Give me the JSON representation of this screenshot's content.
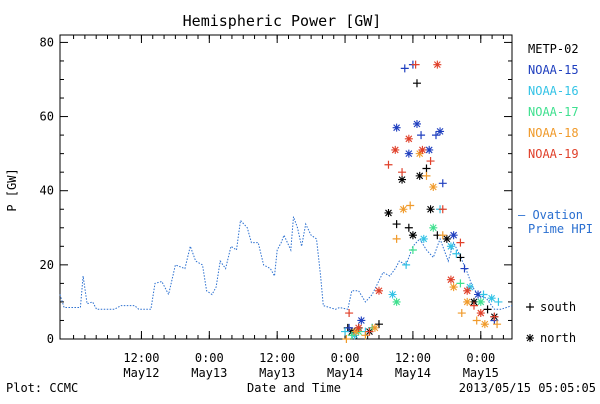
{
  "chart_data": {
    "type": "scatter",
    "title": "Hemispheric Power [GW]",
    "ylabel": "P [GW]",
    "xlabel": "Date and Time",
    "ylim": [
      0,
      82
    ],
    "xlim": [
      -0.1,
      3.23
    ],
    "y_ticks": [
      0,
      20,
      40,
      60,
      80
    ],
    "x_ticks": [
      {
        "x": 0.5,
        "time": "12:00",
        "date": "May12"
      },
      {
        "x": 1.0,
        "time": "0:00",
        "date": "May13"
      },
      {
        "x": 1.5,
        "time": "12:00",
        "date": "May13"
      },
      {
        "x": 2.0,
        "time": "0:00",
        "date": "May14"
      },
      {
        "x": 2.5,
        "time": "12:00",
        "date": "May14"
      },
      {
        "x": 3.0,
        "time": "0:00",
        "date": "May15"
      }
    ],
    "x_unit": "days from May11 0:00",
    "legend_placement": "right",
    "satellites": [
      {
        "name": "METP-02",
        "color": "#000000"
      },
      {
        "name": "NOAA-15",
        "color": "#1f3fbf"
      },
      {
        "name": "NOAA-16",
        "color": "#33c3e6"
      },
      {
        "name": "NOAA-17",
        "color": "#3fe08f"
      },
      {
        "name": "NOAA-18",
        "color": "#f09a2a"
      },
      {
        "name": "NOAA-19",
        "color": "#e0402a"
      }
    ],
    "ovation": {
      "label_line1": "– Ovation",
      "label_line2": "Prime HPI",
      "color": "#2a6fd0",
      "points": [
        [
          -0.1,
          12
        ],
        [
          -0.07,
          8.5
        ],
        [
          0.05,
          8.5
        ],
        [
          0.07,
          17
        ],
        [
          0.1,
          9.5
        ],
        [
          0.14,
          10
        ],
        [
          0.17,
          8
        ],
        [
          0.3,
          8
        ],
        [
          0.35,
          9
        ],
        [
          0.45,
          9
        ],
        [
          0.48,
          8
        ],
        [
          0.57,
          8
        ],
        [
          0.6,
          15
        ],
        [
          0.65,
          15.5
        ],
        [
          0.7,
          12
        ],
        [
          0.75,
          20
        ],
        [
          0.82,
          19
        ],
        [
          0.86,
          25
        ],
        [
          0.9,
          21
        ],
        [
          0.95,
          20
        ],
        [
          0.98,
          13
        ],
        [
          1.02,
          12
        ],
        [
          1.05,
          14
        ],
        [
          1.08,
          21
        ],
        [
          1.12,
          19
        ],
        [
          1.16,
          25
        ],
        [
          1.2,
          24
        ],
        [
          1.23,
          32
        ],
        [
          1.28,
          30
        ],
        [
          1.31,
          26
        ],
        [
          1.36,
          26
        ],
        [
          1.4,
          20
        ],
        [
          1.45,
          19
        ],
        [
          1.48,
          17
        ],
        [
          1.5,
          24
        ],
        [
          1.53,
          26
        ],
        [
          1.55,
          28
        ],
        [
          1.6,
          24
        ],
        [
          1.62,
          33
        ],
        [
          1.65,
          30
        ],
        [
          1.68,
          25
        ],
        [
          1.71,
          31
        ],
        [
          1.75,
          28
        ],
        [
          1.79,
          27
        ],
        [
          1.82,
          17
        ],
        [
          1.84,
          9
        ],
        [
          1.93,
          8
        ],
        [
          1.96,
          8.5
        ],
        [
          2.02,
          8
        ],
        [
          2.05,
          13
        ],
        [
          2.1,
          13
        ],
        [
          2.15,
          10
        ],
        [
          2.2,
          12
        ],
        [
          2.28,
          18
        ],
        [
          2.33,
          17
        ],
        [
          2.37,
          19
        ],
        [
          2.4,
          21
        ],
        [
          2.45,
          20
        ],
        [
          2.5,
          25
        ],
        [
          2.55,
          27
        ],
        [
          2.6,
          24
        ],
        [
          2.65,
          22
        ],
        [
          2.7,
          27
        ],
        [
          2.72,
          25
        ],
        [
          2.76,
          21
        ],
        [
          2.8,
          26
        ],
        [
          2.84,
          23
        ],
        [
          2.9,
          18
        ],
        [
          2.94,
          14
        ],
        [
          2.98,
          12
        ],
        [
          3.04,
          11
        ],
        [
          3.1,
          8
        ],
        [
          3.15,
          8
        ],
        [
          3.23,
          9
        ]
      ]
    },
    "series": [
      {
        "name": "METP-02",
        "marker": "mixed",
        "points": [
          [
            2.02,
            3
          ],
          [
            2.05,
            2
          ],
          [
            2.1,
            3
          ],
          [
            2.18,
            2
          ],
          [
            2.25,
            4
          ],
          [
            2.32,
            34
          ],
          [
            2.38,
            31
          ],
          [
            2.42,
            43
          ],
          [
            2.47,
            30
          ],
          [
            2.5,
            28
          ],
          [
            2.53,
            69
          ],
          [
            2.55,
            44
          ],
          [
            2.6,
            46
          ],
          [
            2.63,
            35
          ],
          [
            2.68,
            28
          ],
          [
            2.75,
            27
          ],
          [
            2.85,
            22
          ],
          [
            2.95,
            10
          ],
          [
            3.05,
            8
          ],
          [
            3.1,
            6
          ]
        ]
      },
      {
        "name": "NOAA-15",
        "marker": "mixed",
        "points": [
          [
            2.03,
            3
          ],
          [
            2.12,
            5
          ],
          [
            2.2,
            3
          ],
          [
            2.38,
            57
          ],
          [
            2.44,
            73
          ],
          [
            2.47,
            50
          ],
          [
            2.5,
            74
          ],
          [
            2.53,
            58
          ],
          [
            2.56,
            55
          ],
          [
            2.62,
            51
          ],
          [
            2.67,
            55
          ],
          [
            2.7,
            56
          ],
          [
            2.72,
            42
          ],
          [
            2.8,
            28
          ],
          [
            2.88,
            19
          ],
          [
            2.98,
            12
          ],
          [
            3.1,
            5
          ]
        ]
      },
      {
        "name": "NOAA-16",
        "marker": "mixed",
        "points": [
          [
            2.0,
            2
          ],
          [
            2.07,
            1
          ],
          [
            2.15,
            2
          ],
          [
            2.35,
            12
          ],
          [
            2.45,
            20
          ],
          [
            2.58,
            27
          ],
          [
            2.7,
            35
          ],
          [
            2.78,
            25
          ],
          [
            2.82,
            23
          ],
          [
            2.92,
            14
          ],
          [
            3.02,
            12
          ],
          [
            3.08,
            11
          ],
          [
            3.13,
            10
          ]
        ]
      },
      {
        "name": "NOAA-17",
        "marker": "mixed",
        "points": [
          [
            2.05,
            1
          ],
          [
            2.1,
            2
          ],
          [
            2.2,
            3
          ],
          [
            2.38,
            10
          ],
          [
            2.5,
            24
          ],
          [
            2.65,
            30
          ],
          [
            2.85,
            15
          ],
          [
            3.0,
            10
          ]
        ]
      },
      {
        "name": "NOAA-18",
        "marker": "mixed",
        "points": [
          [
            2.01,
            0
          ],
          [
            2.08,
            2
          ],
          [
            2.15,
            1
          ],
          [
            2.22,
            3
          ],
          [
            2.38,
            27
          ],
          [
            2.43,
            35
          ],
          [
            2.48,
            36
          ],
          [
            2.55,
            50
          ],
          [
            2.6,
            44
          ],
          [
            2.65,
            41
          ],
          [
            2.72,
            28
          ],
          [
            2.8,
            14
          ],
          [
            2.86,
            7
          ],
          [
            2.9,
            10
          ],
          [
            2.97,
            5
          ],
          [
            3.03,
            4
          ],
          [
            3.12,
            4
          ]
        ]
      },
      {
        "name": "NOAA-19",
        "marker": "mixed",
        "points": [
          [
            2.03,
            7
          ],
          [
            2.1,
            3
          ],
          [
            2.18,
            2
          ],
          [
            2.25,
            13
          ],
          [
            2.32,
            47
          ],
          [
            2.37,
            51
          ],
          [
            2.42,
            45
          ],
          [
            2.47,
            54
          ],
          [
            2.52,
            74
          ],
          [
            2.57,
            51
          ],
          [
            2.63,
            48
          ],
          [
            2.68,
            74
          ],
          [
            2.72,
            35
          ],
          [
            2.78,
            16
          ],
          [
            2.85,
            26
          ],
          [
            2.9,
            13
          ],
          [
            2.95,
            9
          ],
          [
            3.0,
            7
          ],
          [
            3.1,
            6
          ]
        ]
      }
    ],
    "marker_legend": [
      {
        "symbol": "+",
        "label": "south"
      },
      {
        "symbol": "*",
        "label": "north"
      }
    ]
  },
  "footer": {
    "plot_credit": "Plot: CCMC",
    "timestamp": "2013/05/15 05:05:05"
  }
}
